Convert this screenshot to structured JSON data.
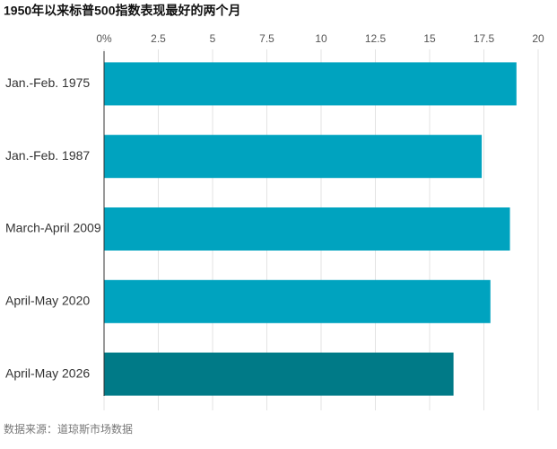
{
  "chart_data": {
    "type": "bar",
    "orientation": "horizontal",
    "title": "1950年以来标普500指数表现最好的两个月",
    "source": "数据来源：道琼斯市场数据",
    "categories": [
      "Jan.-Feb. 1975",
      "Jan.-Feb. 1987",
      "March-April 2009",
      "April-May 2020",
      "April-May 2026"
    ],
    "values": [
      19.0,
      17.4,
      18.7,
      17.8,
      16.1
    ],
    "colors": [
      "#00a3bf",
      "#00a3bf",
      "#00a3bf",
      "#00a3bf",
      "#007a87"
    ],
    "xlim": [
      0,
      20
    ],
    "xticks": [
      {
        "value": 0,
        "label": "0%"
      },
      2.5,
      5,
      7.5,
      10,
      12.5,
      15,
      17.5,
      20
    ],
    "grid": true
  }
}
